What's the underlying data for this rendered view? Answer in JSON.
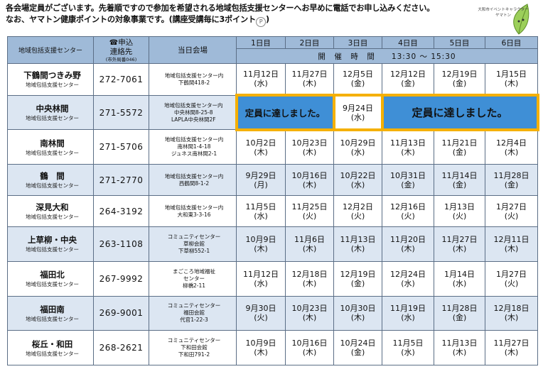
{
  "notice": {
    "line1": "各会場定員がございます。先着順ですので参加を希望される地域包括支援センターへお早めに電話でお申し込みください。",
    "line2": "なお、ヤマトン健康ポイントの対象事業です。(講座受講毎に3ポイント",
    "line2_end": ")"
  },
  "mascot": {
    "caption": "大和市イベントキャラクター\nヤマトン"
  },
  "header": {
    "center": "地域包括支援センター",
    "contact_glyph": "☎",
    "contact_a": "申込",
    "contact_b": "連絡先",
    "contact_sub": "(市外局番046)",
    "venue": "当日会場",
    "days": [
      "1日目",
      "2日目",
      "3日目",
      "4日目",
      "5日目",
      "6日目"
    ],
    "time": "開　催　時　間　　13:30 ～ 15:30"
  },
  "rows": [
    {
      "name": "下鶴間つきみ野",
      "sub": "地域包括支援センター",
      "phone": "272-7061",
      "venue": [
        "地域包括支援センター内",
        "下鶴間418-2"
      ],
      "dates": [
        [
          "11月12日",
          "(水)"
        ],
        [
          "11月27日",
          "(木)"
        ],
        [
          "12月5日",
          "(金)"
        ],
        [
          "12月12日",
          "(金)"
        ],
        [
          "12月19日",
          "(金)"
        ],
        [
          "1月15日",
          "(木)"
        ]
      ]
    },
    {
      "name": "中央林間",
      "sub": "地域包括支援センター",
      "phone": "271-5572",
      "venue": [
        "地域包括支援センター内",
        "中央林間8-25-8",
        "LAPLA中央林間2F"
      ],
      "full_a": "定員に達しました。",
      "special": [
        "9月24日",
        "(水)"
      ],
      "full_b": "定員に達しました。"
    },
    {
      "name": "南林間",
      "sub": "地域包括支援センター",
      "phone": "271-5706",
      "venue": [
        "地域包括支援センター内",
        "南林間1-4-18",
        "ジュネス南林間2-1"
      ],
      "dates": [
        [
          "10月2日",
          "(木)"
        ],
        [
          "10月23日",
          "(木)"
        ],
        [
          "10月29日",
          "(水)"
        ],
        [
          "11月13日",
          "(木)"
        ],
        [
          "11月21日",
          "(金)"
        ],
        [
          "12月4日",
          "(木)"
        ]
      ]
    },
    {
      "name": "鶴　間",
      "sub": "地域包括支援センター",
      "phone": "271-2770",
      "venue": [
        "地域包括支援センター内",
        "西鶴間8-1-2"
      ],
      "dates": [
        [
          "9月29日",
          "(月)"
        ],
        [
          "10月16日",
          "(木)"
        ],
        [
          "10月22日",
          "(水)"
        ],
        [
          "10月31日",
          "(金)"
        ],
        [
          "11月14日",
          "(金)"
        ],
        [
          "11月28日",
          "(金)"
        ]
      ]
    },
    {
      "name": "深見大和",
      "sub": "地域包括支援センター",
      "phone": "264-3192",
      "venue": [
        "地域包括支援センター内",
        "大和東3-3-16"
      ],
      "dates": [
        [
          "11月5日",
          "(水)"
        ],
        [
          "11月25日",
          "(火)"
        ],
        [
          "12月2日",
          "(火)"
        ],
        [
          "12月16日",
          "(火)"
        ],
        [
          "1月13日",
          "(火)"
        ],
        [
          "1月27日",
          "(火)"
        ]
      ]
    },
    {
      "name": "上草柳・中央",
      "sub": "地域包括支援センター",
      "phone": "263-1108",
      "venue": [
        "コミュニティセンター",
        "草柳会館",
        "下草柳552-1"
      ],
      "dates": [
        [
          "10月9日",
          "(木)"
        ],
        [
          "11月6日",
          "(木)"
        ],
        [
          "11月13日",
          "(木)"
        ],
        [
          "11月20日",
          "(木)"
        ],
        [
          "11月27日",
          "(木)"
        ],
        [
          "12月11日",
          "(木)"
        ]
      ]
    },
    {
      "name": "福田北",
      "sub": "地域包括支援センター",
      "phone": "267-9992",
      "venue": [
        "まごころ地域福祉",
        "センター",
        "柳橋2-11"
      ],
      "dates": [
        [
          "11月12日",
          "(水)"
        ],
        [
          "12月18日",
          "(木)"
        ],
        [
          "12月19日",
          "(金)"
        ],
        [
          "12月24日",
          "(水)"
        ],
        [
          "1月14日",
          "(水)"
        ],
        [
          "1月27日",
          "(火)"
        ]
      ]
    },
    {
      "name": "福田南",
      "sub": "地域包括支援センター",
      "phone": "269-9001",
      "venue": [
        "コミュニティセンター",
        "福田会館",
        "代官1-22-3"
      ],
      "dates": [
        [
          "9月30日",
          "(火)"
        ],
        [
          "10月23日",
          "(木)"
        ],
        [
          "10月30日",
          "(木)"
        ],
        [
          "11月19日",
          "(水)"
        ],
        [
          "11月28日",
          "(金)"
        ],
        [
          "12月18日",
          "(木)"
        ]
      ]
    },
    {
      "name": "桜丘・和田",
      "sub": "地域包括支援センター",
      "phone": "268-2621",
      "venue": [
        "コミュニティセンター",
        "下和田会館",
        "下和田791-2"
      ],
      "dates": [
        [
          "10月9日",
          "(木)"
        ],
        [
          "10月16日",
          "(木)"
        ],
        [
          "10月24日",
          "(金)"
        ],
        [
          "11月5日",
          "(水)"
        ],
        [
          "11月13日",
          "(木)"
        ],
        [
          "11月27日",
          "(木)"
        ]
      ]
    }
  ]
}
